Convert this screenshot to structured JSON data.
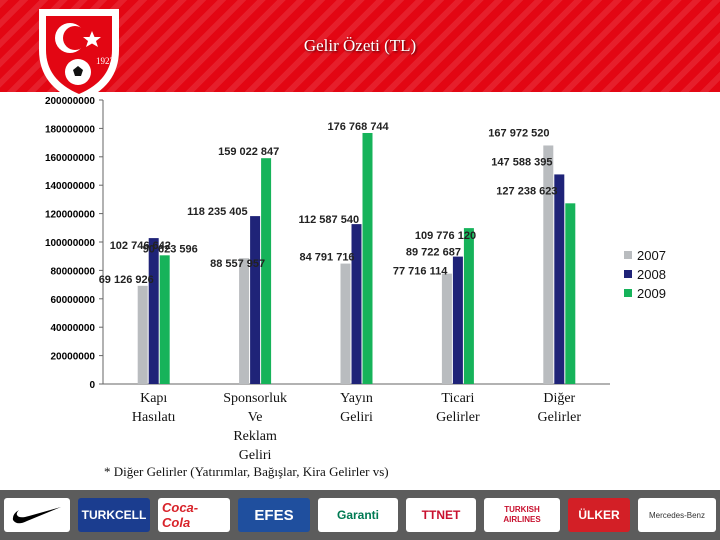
{
  "header": {
    "title": "Gelir Özeti (TL)",
    "logo_text": "1923",
    "logo_icon": "tff-crest-icon"
  },
  "chart_data": {
    "type": "bar",
    "title": "Gelir Özeti (TL)",
    "xlabel": "",
    "ylabel": "",
    "ylim": [
      0,
      200000000
    ],
    "yticks": [
      0,
      20000000,
      40000000,
      60000000,
      80000000,
      100000000,
      120000000,
      140000000,
      160000000,
      180000000,
      200000000
    ],
    "ytick_labels": [
      "0",
      "20000000",
      "40000000",
      "60000000",
      "80000000",
      "100000000",
      "120000000",
      "140000000",
      "160000000",
      "180000000",
      "200000000"
    ],
    "grid": false,
    "legend": "right",
    "categories": [
      "Kapı Hasılatı",
      "Sponsorluk Ve Reklam Geliri",
      "Yayın Geliri",
      "Ticari Gelirler",
      "Diğer Gelirler"
    ],
    "category_lines": [
      [
        "Kapı",
        "Hasılatı"
      ],
      [
        "Sponsorluk",
        "Ve",
        "Reklam",
        "Geliri"
      ],
      [
        "Yayın",
        "Geliri"
      ],
      [
        "Ticari",
        "Gelirler"
      ],
      [
        "Diğer",
        "Gelirler"
      ]
    ],
    "series": [
      {
        "name": "2007",
        "color": "#b9bcbf",
        "values": [
          69126926,
          88557957,
          84791716,
          77716114,
          167972520
        ],
        "labels": [
          "69 126 926",
          "88 557 957",
          "84 791 716",
          "77 716 114",
          "167 972 520"
        ]
      },
      {
        "name": "2008",
        "color": "#1f2378",
        "values": [
          102746642,
          118235405,
          112587540,
          89722687,
          147588395
        ],
        "labels": [
          "102 746 642",
          "118 235 405",
          "112 587 540",
          "89 722 687",
          "147 588 395"
        ]
      },
      {
        "name": "2009",
        "color": "#16b35a",
        "values": [
          90623596,
          159022847,
          176768744,
          109776120,
          127238623
        ],
        "labels": [
          "90 623 596",
          "159 022 847",
          "176 768 744",
          "109 776 120",
          "127 238 623"
        ]
      }
    ]
  },
  "footnote": "* Diğer Gelirler (Yatırımlar, Bağışlar, Kira Gelirler vs)",
  "sponsors": [
    {
      "name": "Nike",
      "icon": "nike-swoosh-icon"
    },
    {
      "name": "TURKCELL"
    },
    {
      "name": "Coca-Cola"
    },
    {
      "name": "EFES"
    },
    {
      "name": "Garanti"
    },
    {
      "name": "TTNET"
    },
    {
      "name": "TURKISH AIRLINES"
    },
    {
      "name": "ÜLKER"
    },
    {
      "name": "Mercedes-Benz"
    }
  ]
}
